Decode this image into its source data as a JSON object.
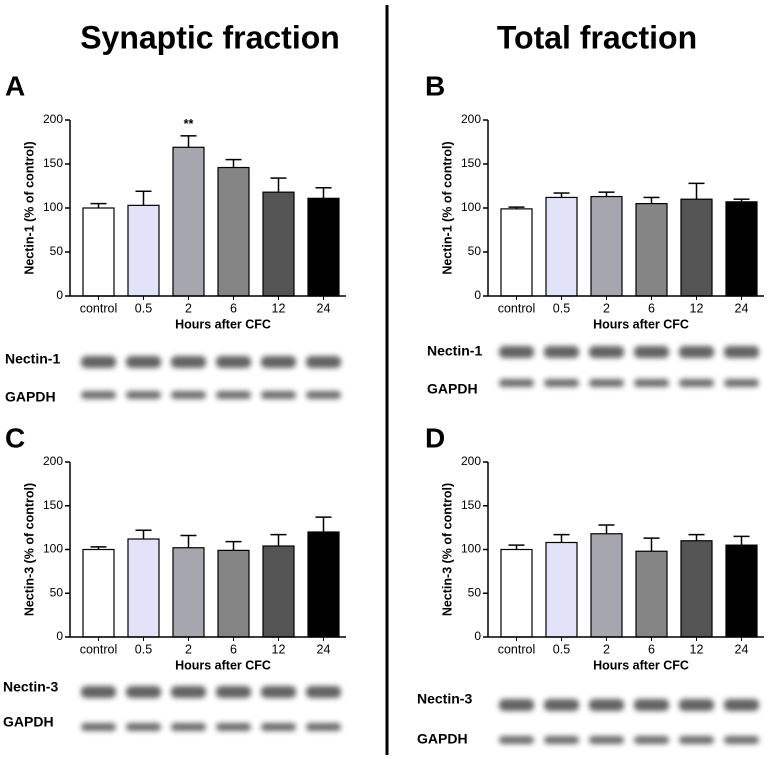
{
  "headers": [
    "Synaptic fraction",
    "Total fraction"
  ],
  "chart_data": [
    {
      "type": "bar",
      "panel": "A",
      "ylabel": "Nectin-1 (% of control)",
      "xlabel": "Hours after CFC",
      "categories": [
        "control",
        "0.5",
        "2",
        "6",
        "12",
        "24"
      ],
      "values": [
        100,
        103,
        169,
        146,
        118,
        111
      ],
      "errors": [
        5,
        16,
        13,
        9,
        16,
        12
      ],
      "significance": [
        null,
        null,
        "**",
        null,
        null,
        null
      ],
      "colors": [
        "#ffffff",
        "#e2e2f8",
        "#a6a6ae",
        "#858585",
        "#545454",
        "#000000"
      ],
      "ylim": [
        0,
        200
      ],
      "yticks": [
        0,
        50,
        100,
        150,
        200
      ],
      "blot_labels": [
        "Nectin-1",
        "GAPDH"
      ]
    },
    {
      "type": "bar",
      "panel": "B",
      "ylabel": "Nectin-1 (% of control)",
      "xlabel": "Hours after CFC",
      "categories": [
        "control",
        "0.5",
        "2",
        "6",
        "12",
        "24"
      ],
      "values": [
        99,
        112,
        113,
        105,
        110,
        107
      ],
      "errors": [
        2,
        5,
        5,
        7,
        18,
        3
      ],
      "colors": [
        "#ffffff",
        "#e2e2f8",
        "#a6a6ae",
        "#858585",
        "#545454",
        "#000000"
      ],
      "ylim": [
        0,
        200
      ],
      "yticks": [
        0,
        50,
        100,
        150,
        200
      ],
      "blot_labels": [
        "Nectin-1",
        "GAPDH"
      ]
    },
    {
      "type": "bar",
      "panel": "C",
      "ylabel": "Nectin-3 (% of control)",
      "xlabel": "Hours after CFC",
      "categories": [
        "control",
        "0.5",
        "2",
        "6",
        "12",
        "24"
      ],
      "values": [
        100,
        112,
        102,
        99,
        104,
        120
      ],
      "errors": [
        3,
        10,
        14,
        10,
        13,
        17
      ],
      "colors": [
        "#ffffff",
        "#e2e2f8",
        "#a6a6ae",
        "#858585",
        "#545454",
        "#000000"
      ],
      "ylim": [
        0,
        200
      ],
      "yticks": [
        0,
        50,
        100,
        150,
        200
      ],
      "blot_labels": [
        "Nectin-3",
        "GAPDH"
      ]
    },
    {
      "type": "bar",
      "panel": "D",
      "ylabel": "Nectin-3 (% of control)",
      "xlabel": "Hours after CFC",
      "categories": [
        "control",
        "0.5",
        "2",
        "6",
        "12",
        "24"
      ],
      "values": [
        100,
        108,
        118,
        98,
        110,
        105
      ],
      "errors": [
        5,
        9,
        10,
        15,
        7,
        10
      ],
      "colors": [
        "#ffffff",
        "#e2e2f8",
        "#a6a6ae",
        "#858585",
        "#545454",
        "#000000"
      ],
      "ylim": [
        0,
        200
      ],
      "yticks": [
        0,
        50,
        100,
        150,
        200
      ],
      "blot_labels": [
        "Nectin-3",
        "GAPDH"
      ]
    }
  ]
}
